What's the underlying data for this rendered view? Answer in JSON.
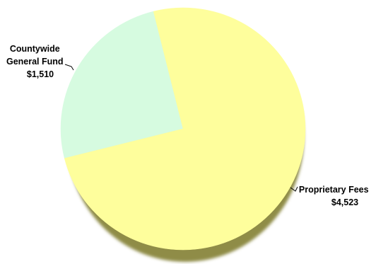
{
  "chart_data": {
    "type": "pie",
    "title": "",
    "slices": [
      {
        "name": "Countywide General Fund",
        "name_lines": [
          "Countywide",
          "General Fund"
        ],
        "value": 1510,
        "value_label": "$1,510",
        "color": "#d6fbe0"
      },
      {
        "name": "Proprietary Fees",
        "name_lines": [
          "Proprietary Fees"
        ],
        "value": 4523,
        "value_label": "$4,523",
        "color": "#fefe9c"
      }
    ],
    "colors": {
      "shadow": "#8f8c47"
    },
    "legend": "none"
  }
}
